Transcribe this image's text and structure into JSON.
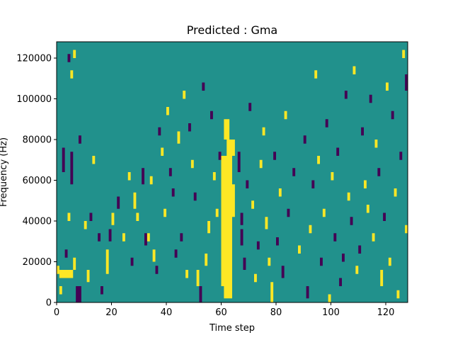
{
  "chart_data": {
    "type": "heatmap",
    "title": "Predicted : Gma",
    "xlabel": "Time step",
    "ylabel": "Frequency (Hz)",
    "xlim": [
      0,
      128
    ],
    "ylim": [
      0,
      128000
    ],
    "x_ticks": [
      0,
      20,
      40,
      60,
      80,
      100,
      120
    ],
    "y_ticks": [
      0,
      20000,
      40000,
      60000,
      80000,
      100000,
      120000
    ],
    "x_tick_labels": [
      "0",
      "20",
      "40",
      "60",
      "80",
      "100",
      "120"
    ],
    "y_tick_labels": [
      "0",
      "20000",
      "40000",
      "60000",
      "80000",
      "100000",
      "120000"
    ],
    "colormap": "viridis",
    "value_range": [
      -1,
      1
    ],
    "colors": {
      "-1": "#440154",
      "0": "#21918c",
      "1": "#fde725"
    },
    "background_value": 0,
    "grid": false,
    "cells": [
      {
        "x": [
          0,
          1
        ],
        "y": [
          14000,
          18000
        ],
        "v": 1
      },
      {
        "x": [
          1,
          6
        ],
        "y": [
          12000,
          16000
        ],
        "v": 1
      },
      {
        "x": [
          1,
          2
        ],
        "y": [
          4000,
          8000
        ],
        "v": 1
      },
      {
        "x": [
          2,
          3
        ],
        "y": [
          64000,
          76000
        ],
        "v": -1
      },
      {
        "x": [
          3,
          4
        ],
        "y": [
          22000,
          26000
        ],
        "v": -1
      },
      {
        "x": [
          4,
          5
        ],
        "y": [
          40000,
          44000
        ],
        "v": 1
      },
      {
        "x": [
          5,
          6
        ],
        "y": [
          58000,
          74000
        ],
        "v": -1
      },
      {
        "x": [
          6,
          7
        ],
        "y": [
          16000,
          22000
        ],
        "v": 1
      },
      {
        "x": [
          6,
          7
        ],
        "y": [
          120000,
          124000
        ],
        "v": 1
      },
      {
        "x": [
          5,
          6
        ],
        "y": [
          110000,
          114000
        ],
        "v": 1
      },
      {
        "x": [
          4,
          5
        ],
        "y": [
          118000,
          122000
        ],
        "v": -1
      },
      {
        "x": [
          7,
          9
        ],
        "y": [
          0,
          8000
        ],
        "v": -1
      },
      {
        "x": [
          8,
          9
        ],
        "y": [
          78000,
          82000
        ],
        "v": -1
      },
      {
        "x": [
          10,
          11
        ],
        "y": [
          36000,
          40000
        ],
        "v": 1
      },
      {
        "x": [
          11,
          12
        ],
        "y": [
          10000,
          16000
        ],
        "v": 1
      },
      {
        "x": [
          12,
          13
        ],
        "y": [
          40000,
          44000
        ],
        "v": -1
      },
      {
        "x": [
          13,
          14
        ],
        "y": [
          68000,
          72000
        ],
        "v": 1
      },
      {
        "x": [
          15,
          16
        ],
        "y": [
          30000,
          34000
        ],
        "v": -1
      },
      {
        "x": [
          16,
          17
        ],
        "y": [
          4000,
          8000
        ],
        "v": -1
      },
      {
        "x": [
          18,
          19
        ],
        "y": [
          14000,
          26000
        ],
        "v": 1
      },
      {
        "x": [
          19,
          20
        ],
        "y": [
          30000,
          36000
        ],
        "v": -1
      },
      {
        "x": [
          20,
          21
        ],
        "y": [
          38000,
          44000
        ],
        "v": 1
      },
      {
        "x": [
          22,
          23
        ],
        "y": [
          46000,
          52000
        ],
        "v": -1
      },
      {
        "x": [
          24,
          25
        ],
        "y": [
          30000,
          34000
        ],
        "v": 1
      },
      {
        "x": [
          26,
          27
        ],
        "y": [
          60000,
          64000
        ],
        "v": 1
      },
      {
        "x": [
          27,
          28
        ],
        "y": [
          18000,
          22000
        ],
        "v": -1
      },
      {
        "x": [
          28,
          29
        ],
        "y": [
          46000,
          54000
        ],
        "v": 1
      },
      {
        "x": [
          29,
          30
        ],
        "y": [
          40000,
          44000
        ],
        "v": 1
      },
      {
        "x": [
          31,
          32
        ],
        "y": [
          58000,
          66000
        ],
        "v": -1
      },
      {
        "x": [
          32,
          33
        ],
        "y": [
          28000,
          34000
        ],
        "v": -1
      },
      {
        "x": [
          33,
          34
        ],
        "y": [
          30000,
          34000
        ],
        "v": 1
      },
      {
        "x": [
          34,
          35
        ],
        "y": [
          58000,
          62000
        ],
        "v": 1
      },
      {
        "x": [
          35,
          36
        ],
        "y": [
          20000,
          26000
        ],
        "v": 1
      },
      {
        "x": [
          36,
          37
        ],
        "y": [
          14000,
          18000
        ],
        "v": -1
      },
      {
        "x": [
          37,
          38
        ],
        "y": [
          82000,
          86000
        ],
        "v": -1
      },
      {
        "x": [
          38,
          39
        ],
        "y": [
          72000,
          76000
        ],
        "v": 1
      },
      {
        "x": [
          39,
          40
        ],
        "y": [
          42000,
          46000
        ],
        "v": 1
      },
      {
        "x": [
          40,
          41
        ],
        "y": [
          92000,
          96000
        ],
        "v": 1
      },
      {
        "x": [
          41,
          42
        ],
        "y": [
          62000,
          66000
        ],
        "v": -1
      },
      {
        "x": [
          42,
          43
        ],
        "y": [
          52000,
          56000
        ],
        "v": -1
      },
      {
        "x": [
          43,
          44
        ],
        "y": [
          22000,
          26000
        ],
        "v": -1
      },
      {
        "x": [
          44,
          45
        ],
        "y": [
          78000,
          84000
        ],
        "v": 1
      },
      {
        "x": [
          45,
          46
        ],
        "y": [
          30000,
          34000
        ],
        "v": -1
      },
      {
        "x": [
          46,
          47
        ],
        "y": [
          100000,
          104000
        ],
        "v": 1
      },
      {
        "x": [
          47,
          48
        ],
        "y": [
          12000,
          16000
        ],
        "v": 1
      },
      {
        "x": [
          48,
          49
        ],
        "y": [
          84000,
          88000
        ],
        "v": -1
      },
      {
        "x": [
          49,
          50
        ],
        "y": [
          66000,
          70000
        ],
        "v": 1
      },
      {
        "x": [
          50,
          51
        ],
        "y": [
          50000,
          54000
        ],
        "v": -1
      },
      {
        "x": [
          51,
          52
        ],
        "y": [
          8000,
          16000
        ],
        "v": 1
      },
      {
        "x": [
          52,
          53
        ],
        "y": [
          0,
          8000
        ],
        "v": -1
      },
      {
        "x": [
          53,
          54
        ],
        "y": [
          104000,
          108000
        ],
        "v": -1
      },
      {
        "x": [
          54,
          55
        ],
        "y": [
          18000,
          24000
        ],
        "v": 1
      },
      {
        "x": [
          55,
          56
        ],
        "y": [
          34000,
          40000
        ],
        "v": 1
      },
      {
        "x": [
          56,
          57
        ],
        "y": [
          90000,
          94000
        ],
        "v": -1
      },
      {
        "x": [
          57,
          58
        ],
        "y": [
          60000,
          64000
        ],
        "v": 1
      },
      {
        "x": [
          58,
          59
        ],
        "y": [
          42000,
          46000
        ],
        "v": 1
      },
      {
        "x": [
          59,
          60
        ],
        "y": [
          70000,
          74000
        ],
        "v": -1
      },
      {
        "x": [
          60,
          64
        ],
        "y": [
          60000,
          72000
        ],
        "v": 1
      },
      {
        "x": [
          60,
          64
        ],
        "y": [
          8000,
          60000
        ],
        "v": 1
      },
      {
        "x": [
          62,
          65
        ],
        "y": [
          72000,
          80000
        ],
        "v": 1
      },
      {
        "x": [
          61,
          63
        ],
        "y": [
          80000,
          90000
        ],
        "v": 1
      },
      {
        "x": [
          61,
          64
        ],
        "y": [
          2000,
          8000
        ],
        "v": 1
      },
      {
        "x": [
          64,
          65
        ],
        "y": [
          42000,
          58000
        ],
        "v": 1
      },
      {
        "x": [
          66,
          67
        ],
        "y": [
          64000,
          74000
        ],
        "v": -1
      },
      {
        "x": [
          67,
          68
        ],
        "y": [
          28000,
          36000
        ],
        "v": -1
      },
      {
        "x": [
          67,
          68
        ],
        "y": [
          38000,
          44000
        ],
        "v": -1
      },
      {
        "x": [
          68,
          69
        ],
        "y": [
          16000,
          22000
        ],
        "v": -1
      },
      {
        "x": [
          69,
          70
        ],
        "y": [
          56000,
          60000
        ],
        "v": -1
      },
      {
        "x": [
          70,
          71
        ],
        "y": [
          94000,
          98000
        ],
        "v": -1
      },
      {
        "x": [
          71,
          72
        ],
        "y": [
          46000,
          50000
        ],
        "v": 1
      },
      {
        "x": [
          72,
          73
        ],
        "y": [
          10000,
          14000
        ],
        "v": 1
      },
      {
        "x": [
          73,
          74
        ],
        "y": [
          26000,
          30000
        ],
        "v": -1
      },
      {
        "x": [
          74,
          75
        ],
        "y": [
          66000,
          70000
        ],
        "v": 1
      },
      {
        "x": [
          75,
          76
        ],
        "y": [
          82000,
          86000
        ],
        "v": 1
      },
      {
        "x": [
          76,
          77
        ],
        "y": [
          36000,
          42000
        ],
        "v": 1
      },
      {
        "x": [
          77,
          78
        ],
        "y": [
          18000,
          22000
        ],
        "v": 1
      },
      {
        "x": [
          78,
          79
        ],
        "y": [
          0,
          10000
        ],
        "v": 1
      },
      {
        "x": [
          79,
          80
        ],
        "y": [
          70000,
          74000
        ],
        "v": -1
      },
      {
        "x": [
          80,
          81
        ],
        "y": [
          28000,
          32000
        ],
        "v": -1
      },
      {
        "x": [
          81,
          82
        ],
        "y": [
          52000,
          56000
        ],
        "v": 1
      },
      {
        "x": [
          82,
          83
        ],
        "y": [
          12000,
          18000
        ],
        "v": -1
      },
      {
        "x": [
          83,
          84
        ],
        "y": [
          90000,
          94000
        ],
        "v": 1
      },
      {
        "x": [
          84,
          85
        ],
        "y": [
          42000,
          46000
        ],
        "v": -1
      },
      {
        "x": [
          86,
          87
        ],
        "y": [
          62000,
          66000
        ],
        "v": -1
      },
      {
        "x": [
          88,
          89
        ],
        "y": [
          24000,
          28000
        ],
        "v": 1
      },
      {
        "x": [
          90,
          91
        ],
        "y": [
          78000,
          82000
        ],
        "v": -1
      },
      {
        "x": [
          91,
          92
        ],
        "y": [
          2000,
          8000
        ],
        "v": -1
      },
      {
        "x": [
          92,
          93
        ],
        "y": [
          34000,
          38000
        ],
        "v": 1
      },
      {
        "x": [
          93,
          94
        ],
        "y": [
          56000,
          60000
        ],
        "v": -1
      },
      {
        "x": [
          94,
          95
        ],
        "y": [
          110000,
          114000
        ],
        "v": 1
      },
      {
        "x": [
          95,
          96
        ],
        "y": [
          68000,
          72000
        ],
        "v": 1
      },
      {
        "x": [
          96,
          97
        ],
        "y": [
          18000,
          22000
        ],
        "v": -1
      },
      {
        "x": [
          97,
          98
        ],
        "y": [
          42000,
          46000
        ],
        "v": 1
      },
      {
        "x": [
          98,
          99
        ],
        "y": [
          86000,
          90000
        ],
        "v": -1
      },
      {
        "x": [
          99,
          100
        ],
        "y": [
          0,
          4000
        ],
        "v": 1
      },
      {
        "x": [
          100,
          101
        ],
        "y": [
          60000,
          64000
        ],
        "v": 1
      },
      {
        "x": [
          101,
          102
        ],
        "y": [
          30000,
          34000
        ],
        "v": -1
      },
      {
        "x": [
          102,
          103
        ],
        "y": [
          72000,
          76000
        ],
        "v": -1
      },
      {
        "x": [
          103,
          104
        ],
        "y": [
          8000,
          12000
        ],
        "v": -1
      },
      {
        "x": [
          104,
          105
        ],
        "y": [
          20000,
          24000
        ],
        "v": -1
      },
      {
        "x": [
          105,
          106
        ],
        "y": [
          100000,
          104000
        ],
        "v": -1
      },
      {
        "x": [
          106,
          107
        ],
        "y": [
          50000,
          54000
        ],
        "v": 1
      },
      {
        "x": [
          107,
          108
        ],
        "y": [
          38000,
          42000
        ],
        "v": -1
      },
      {
        "x": [
          108,
          109
        ],
        "y": [
          112000,
          116000
        ],
        "v": 1
      },
      {
        "x": [
          109,
          110
        ],
        "y": [
          14000,
          18000
        ],
        "v": 1
      },
      {
        "x": [
          110,
          111
        ],
        "y": [
          24000,
          28000
        ],
        "v": -1
      },
      {
        "x": [
          111,
          112
        ],
        "y": [
          82000,
          86000
        ],
        "v": -1
      },
      {
        "x": [
          112,
          113
        ],
        "y": [
          56000,
          60000
        ],
        "v": 1
      },
      {
        "x": [
          113,
          114
        ],
        "y": [
          44000,
          48000
        ],
        "v": 1
      },
      {
        "x": [
          114,
          115
        ],
        "y": [
          98000,
          102000
        ],
        "v": -1
      },
      {
        "x": [
          115,
          116
        ],
        "y": [
          30000,
          34000
        ],
        "v": 1
      },
      {
        "x": [
          116,
          117
        ],
        "y": [
          76000,
          80000
        ],
        "v": 1
      },
      {
        "x": [
          117,
          118
        ],
        "y": [
          62000,
          66000
        ],
        "v": -1
      },
      {
        "x": [
          118,
          119
        ],
        "y": [
          8000,
          16000
        ],
        "v": 1
      },
      {
        "x": [
          119,
          120
        ],
        "y": [
          40000,
          44000
        ],
        "v": -1
      },
      {
        "x": [
          120,
          121
        ],
        "y": [
          104000,
          108000
        ],
        "v": 1
      },
      {
        "x": [
          121,
          122
        ],
        "y": [
          18000,
          22000
        ],
        "v": 1
      },
      {
        "x": [
          122,
          123
        ],
        "y": [
          90000,
          94000
        ],
        "v": -1
      },
      {
        "x": [
          123,
          124
        ],
        "y": [
          52000,
          56000
        ],
        "v": 1
      },
      {
        "x": [
          124,
          125
        ],
        "y": [
          2000,
          6000
        ],
        "v": 1
      },
      {
        "x": [
          125,
          126
        ],
        "y": [
          70000,
          74000
        ],
        "v": -1
      },
      {
        "x": [
          126,
          127
        ],
        "y": [
          120000,
          124000
        ],
        "v": 1
      },
      {
        "x": [
          127,
          128
        ],
        "y": [
          104000,
          112000
        ],
        "v": -1
      },
      {
        "x": [
          127,
          128
        ],
        "y": [
          34000,
          38000
        ],
        "v": 1
      }
    ]
  }
}
